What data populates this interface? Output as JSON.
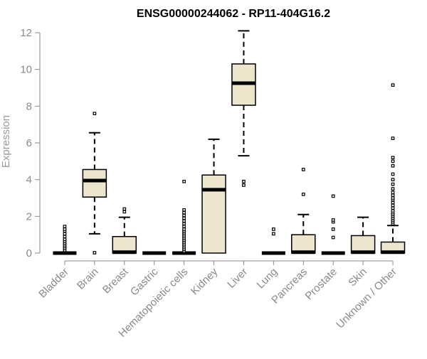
{
  "chart_data": {
    "type": "boxplot",
    "title": "ENSG00000244062 - RP11-404G16.2",
    "xlabel": "",
    "ylabel": "Expression",
    "ylim": [
      0,
      12
    ],
    "yticks": [
      0,
      2,
      4,
      6,
      8,
      10,
      12
    ],
    "grid": false,
    "colors": {
      "box_fill": "#ede6cf",
      "box_stroke": "#000000",
      "axis": "#8a8a8a"
    },
    "categories": [
      "Bladder",
      "Brain",
      "Breast",
      "Gastric",
      "Hematopoietic cells",
      "Kidney",
      "Liver",
      "Lung",
      "Pancreas",
      "Prostate",
      "Skin",
      "Unknown / Other"
    ],
    "boxes": [
      {
        "category": "Bladder",
        "min": 0,
        "q1": 0,
        "median": 0,
        "q3": 0,
        "max": 0,
        "outliers": [
          0.15,
          0.25,
          0.35,
          0.45,
          0.55,
          0.65,
          0.75,
          0.9,
          1.05,
          1.2,
          1.3,
          1.45
        ]
      },
      {
        "category": "Brain",
        "min": 1.05,
        "q1": 3.05,
        "median": 3.95,
        "q3": 4.55,
        "max": 6.55,
        "outliers": [
          0.02,
          7.6
        ]
      },
      {
        "category": "Breast",
        "min": 0,
        "q1": 0,
        "median": 0.05,
        "q3": 0.9,
        "max": 1.95,
        "outliers": [
          2.25,
          2.4
        ]
      },
      {
        "category": "Gastric",
        "min": 0,
        "q1": 0,
        "median": 0,
        "q3": 0,
        "max": 0,
        "outliers": []
      },
      {
        "category": "Hematopoietic cells",
        "min": 0,
        "q1": 0,
        "median": 0,
        "q3": 0,
        "max": 0,
        "outliers": [
          0.1,
          0.2,
          0.3,
          0.4,
          0.5,
          0.6,
          0.7,
          0.8,
          0.9,
          1.0,
          1.1,
          1.2,
          1.3,
          1.45,
          1.6,
          1.75,
          1.9,
          2.05,
          2.2,
          2.35,
          3.9
        ]
      },
      {
        "category": "Kidney",
        "min": 0,
        "q1": 0,
        "median": 3.45,
        "q3": 4.25,
        "max": 6.2,
        "outliers": []
      },
      {
        "category": "Liver",
        "min": 5.3,
        "q1": 8.05,
        "median": 9.25,
        "q3": 10.3,
        "max": 12.1,
        "outliers": [
          3.7,
          3.9
        ]
      },
      {
        "category": "Lung",
        "min": 0,
        "q1": 0,
        "median": 0,
        "q3": 0,
        "max": 0,
        "outliers": [
          1.05,
          1.3
        ]
      },
      {
        "category": "Pancreas",
        "min": 0,
        "q1": 0,
        "median": 0.05,
        "q3": 1.0,
        "max": 2.1,
        "outliers": [
          3.2,
          4.55
        ]
      },
      {
        "category": "Prostate",
        "min": 0,
        "q1": 0,
        "median": 0,
        "q3": 0,
        "max": 0,
        "outliers": [
          0.85,
          1.3,
          1.7,
          1.8,
          3.1
        ]
      },
      {
        "category": "Skin",
        "min": 0,
        "q1": 0,
        "median": 0.05,
        "q3": 0.95,
        "max": 1.95,
        "outliers": []
      },
      {
        "category": "Unknown / Other",
        "min": 0,
        "q1": 0,
        "median": 0.05,
        "q3": 0.6,
        "max": 1.5,
        "outliers": [
          1.6,
          1.7,
          1.8,
          1.9,
          2.0,
          2.1,
          2.2,
          2.3,
          2.45,
          2.6,
          2.75,
          2.9,
          3.0,
          3.15,
          3.3,
          3.5,
          3.75,
          4.0,
          4.3,
          4.75,
          5.0,
          5.2,
          6.25,
          9.15
        ]
      }
    ]
  }
}
